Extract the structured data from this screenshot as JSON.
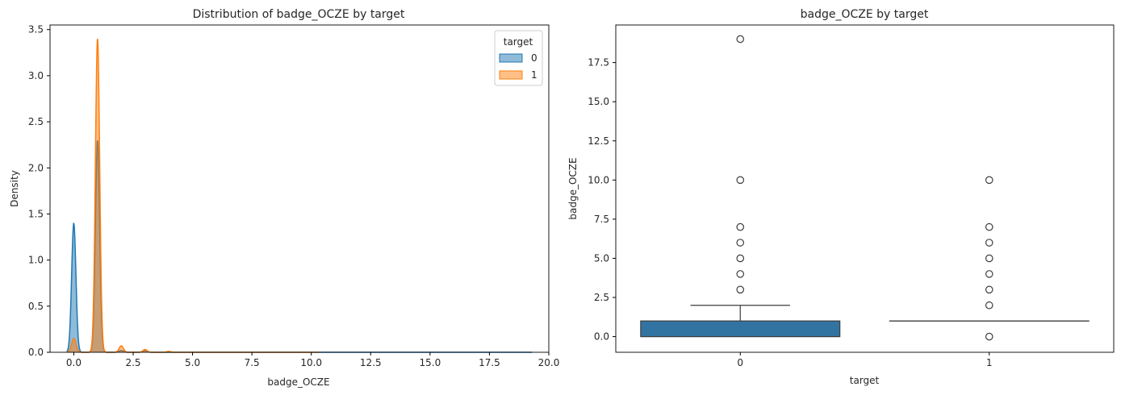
{
  "chart_data": [
    {
      "type": "area",
      "title": "Distribution of badge_OCZE by target",
      "xlabel": "badge_OCZE",
      "ylabel": "Density",
      "xlim": [
        -1.0,
        20.0
      ],
      "ylim": [
        0,
        3.55
      ],
      "xticks": [
        0.0,
        2.5,
        5.0,
        7.5,
        10.0,
        12.5,
        15.0,
        17.5,
        20.0
      ],
      "xtick_labels": [
        "0.0",
        "2.5",
        "5.0",
        "7.5",
        "10.0",
        "12.5",
        "15.0",
        "17.5",
        "20.0"
      ],
      "yticks": [
        0.0,
        0.5,
        1.0,
        1.5,
        2.0,
        2.5,
        3.0,
        3.5
      ],
      "ytick_labels": [
        "0.0",
        "0.5",
        "1.0",
        "1.5",
        "2.0",
        "2.5",
        "3.0",
        "3.5"
      ],
      "legend": {
        "title": "target",
        "placement": "top-right",
        "entries": [
          "0",
          "1"
        ]
      },
      "series": [
        {
          "name": "0",
          "color": "#1f77b4",
          "peaks": [
            {
              "x": 0.0,
              "density": 1.4,
              "width": 0.09
            },
            {
              "x": 1.0,
              "density": 2.3,
              "width": 0.09
            },
            {
              "x": 2.0,
              "density": 0.02,
              "width": 0.09
            },
            {
              "x": 3.0,
              "density": 0.02,
              "width": 0.09
            }
          ],
          "x_range": [
            -0.3,
            19.3
          ]
        },
        {
          "name": "1",
          "color": "#ff7f0e",
          "peaks": [
            {
              "x": 0.0,
              "density": 0.15,
              "width": 0.09
            },
            {
              "x": 1.0,
              "density": 3.4,
              "width": 0.09
            },
            {
              "x": 2.0,
              "density": 0.07,
              "width": 0.09
            },
            {
              "x": 3.0,
              "density": 0.03,
              "width": 0.09
            },
            {
              "x": 4.0,
              "density": 0.01,
              "width": 0.09
            }
          ],
          "x_range": [
            -0.3,
            10.3
          ]
        }
      ]
    },
    {
      "type": "box",
      "title": "badge_OCZE by target",
      "xlabel": "target",
      "ylabel": "badge_OCZE",
      "categories": [
        "0",
        "1"
      ],
      "ylim": [
        -1.0,
        19.9
      ],
      "yticks": [
        0.0,
        2.5,
        5.0,
        7.5,
        10.0,
        12.5,
        15.0,
        17.5
      ],
      "ytick_labels": [
        "0.0",
        "2.5",
        "5.0",
        "7.5",
        "10.0",
        "12.5",
        "15.0",
        "17.5"
      ],
      "box_color": "#3274a1",
      "boxes": [
        {
          "category": "0",
          "q1": 0,
          "median": 0,
          "q3": 1,
          "whisker_low": 0,
          "whisker_high": 2,
          "outliers": [
            3,
            4,
            5,
            6,
            7,
            10,
            19
          ]
        },
        {
          "category": "1",
          "q1": 1,
          "median": 1,
          "q3": 1,
          "whisker_low": 1,
          "whisker_high": 1,
          "outliers": [
            0,
            2,
            3,
            4,
            5,
            6,
            7,
            10
          ]
        }
      ]
    }
  ]
}
